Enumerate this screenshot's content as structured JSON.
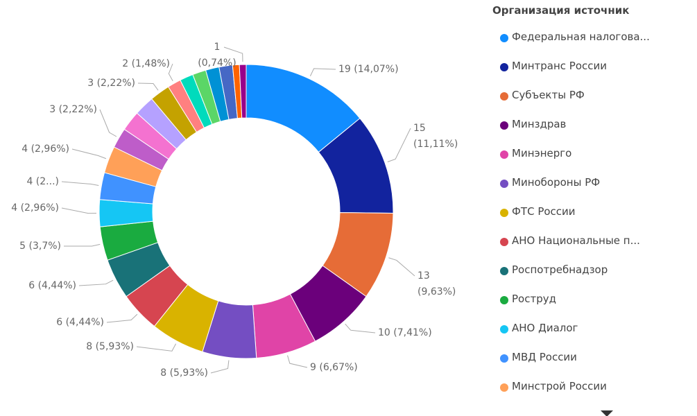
{
  "chart_data": {
    "type": "donut",
    "legend_title": "Организация источник",
    "categories": [
      "Федеральная налогова...",
      "Минтранс России",
      "Субъекты РФ",
      "Минздрав",
      "Минэнерго",
      "Минобороны РФ",
      "ФТС России",
      "АНО Национальные п...",
      "Роспотребнадзор",
      "Роструд",
      "АНО Диалог",
      "МВД России",
      "Минстрой России",
      null,
      null,
      null,
      null,
      null,
      null,
      null,
      null,
      null,
      null,
      null
    ],
    "values": [
      19,
      15,
      13,
      10,
      9,
      8,
      8,
      6,
      6,
      5,
      4,
      4,
      4,
      3,
      3,
      3,
      3,
      2,
      2,
      2,
      2,
      2,
      1,
      1
    ],
    "value_labels": [
      "19 (14,07%)",
      "15 (11,11%)",
      "13 (9,63%)",
      "10 (7,41%)",
      "9 (6,67%)",
      "8 (5,93%)",
      "8 (5,93%)",
      "6 (4,44%)",
      "6 (4,44%)",
      "5 (3,7%)",
      "4 (2,96%)",
      "4 (2...)",
      "4 (2,96%)",
      "3 (2,22%)",
      null,
      null,
      "3 (2,22%)",
      "2 (1,48%)",
      null,
      null,
      null,
      null,
      null,
      "1 (0,74%)"
    ],
    "colors": [
      "#118DFF",
      "#12239E",
      "#E66C37",
      "#6B007B",
      "#E044A7",
      "#744EC2",
      "#D9B300",
      "#D64550",
      "#197278",
      "#1AAB40",
      "#15C6F4",
      "#4092FF",
      "#FFA058",
      "#BE5DC9",
      "#F472D0",
      "#B5A1FF",
      "#C4A200",
      "#FF8080",
      "#00DBBC",
      "#5BD667",
      "#0091D5",
      "#4668C5",
      "#FF6300",
      "#99008A"
    ]
  }
}
